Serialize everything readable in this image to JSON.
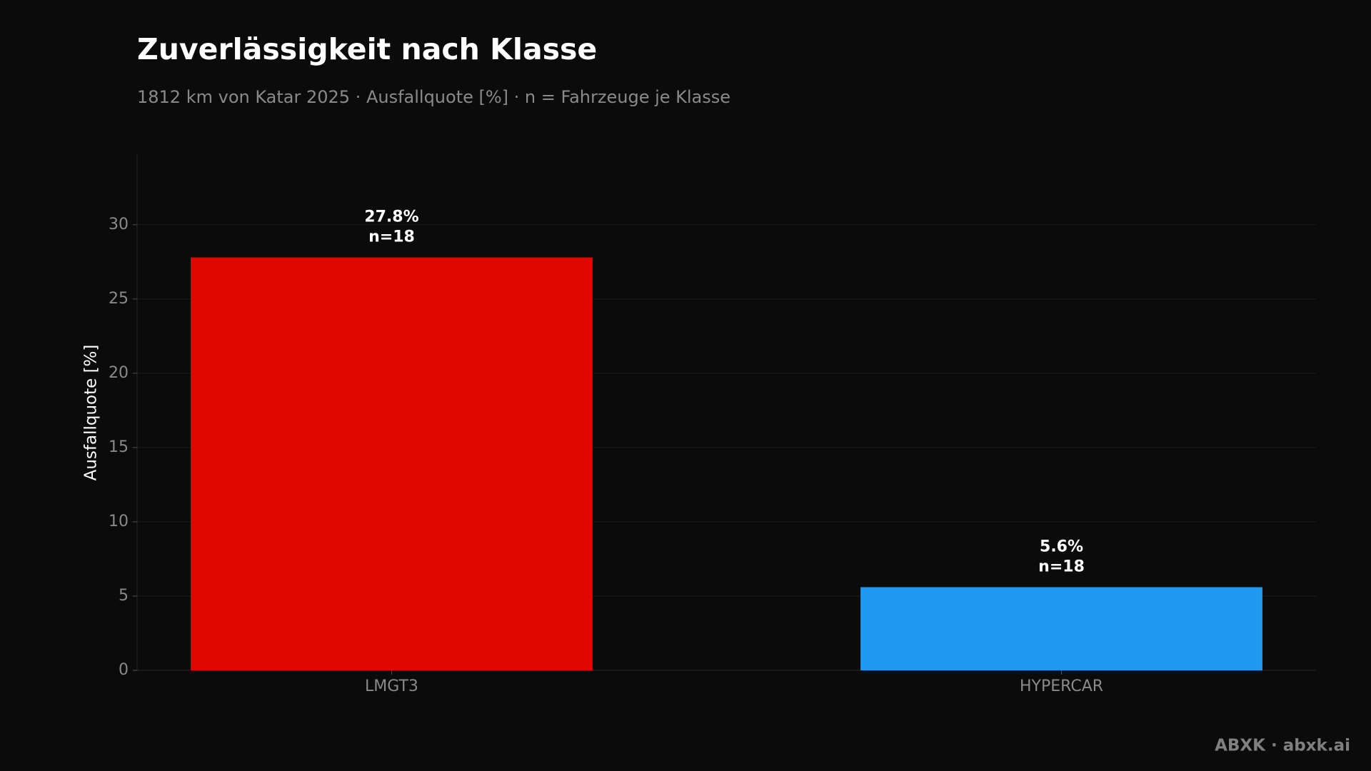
{
  "chart_data": {
    "type": "bar",
    "title": "Zuverlässigkeit nach Klasse",
    "subtitle": "1812 km von Katar 2025 · Ausfallquote [%] · n = Fahrzeuge je Klasse",
    "y_label": "Ausfallquote [%]",
    "categories": [
      "LMGT3",
      "HYPERCAR"
    ],
    "values": [
      27.8,
      5.6
    ],
    "value_labels": [
      "27.8%",
      "5.6%"
    ],
    "sample_labels": [
      "n=18",
      "n=18"
    ],
    "colors": [
      "#e00700",
      "#1e9bf0"
    ],
    "ylim": [
      0,
      34.7
    ],
    "yticks": [
      0,
      5,
      10,
      15,
      20,
      25,
      30
    ],
    "grid": true,
    "footer": "ABXK · abxk.ai"
  }
}
